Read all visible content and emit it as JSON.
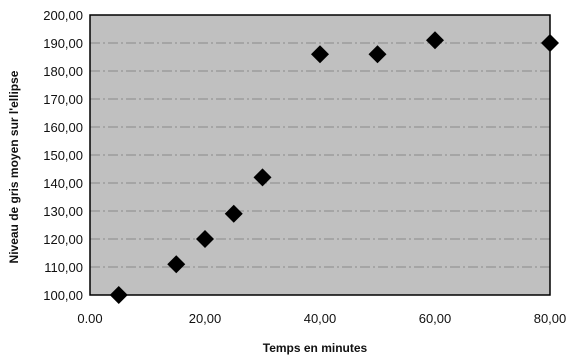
{
  "chart_data": {
    "type": "scatter",
    "title": "",
    "xlabel": "Temps en minutes",
    "ylabel": "Niveau de gris moyen sur l'ellipse",
    "xlim": [
      0,
      80
    ],
    "ylim": [
      100,
      200
    ],
    "x_ticks": [
      "0.00",
      "20,00",
      "40,00",
      "60,00",
      "80,00"
    ],
    "y_ticks": [
      "100,00",
      "110,00",
      "120,00",
      "130,00",
      "140,00",
      "150,00",
      "160,00",
      "170,00",
      "180,00",
      "190,00",
      "200,00"
    ],
    "grid": true,
    "legend": "none",
    "marker": "diamond",
    "colors": {
      "plot_background": "#c0c0c0",
      "grid": "#8a8a8a",
      "marker": "#000000",
      "frame": "#000000"
    },
    "series": [
      {
        "x": [
          5,
          15,
          20,
          25,
          30,
          40,
          50,
          60,
          80
        ],
        "y": [
          100,
          111,
          120,
          129,
          142,
          186,
          186,
          191,
          190
        ]
      }
    ]
  }
}
